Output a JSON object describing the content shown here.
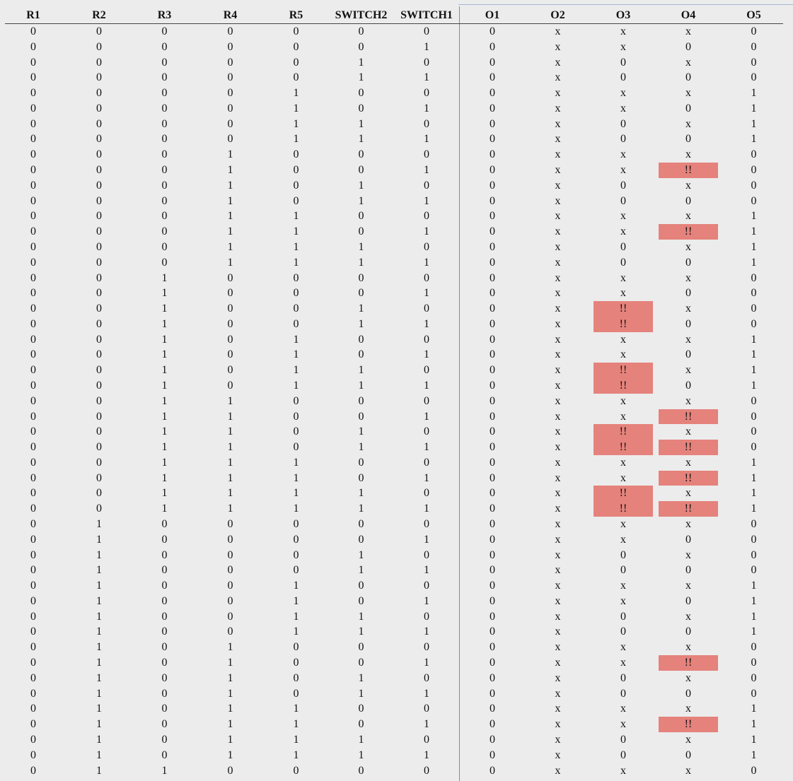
{
  "table": {
    "columns": [
      "R1",
      "R2",
      "R3",
      "R4",
      "R5",
      "SWITCH2",
      "SWITCH1",
      "O1",
      "O2",
      "O3",
      "O4",
      "O5"
    ],
    "rows": [
      [
        "0",
        "0",
        "0",
        "0",
        "0",
        "0",
        "0",
        "0",
        "x",
        "x",
        "x",
        "0"
      ],
      [
        "0",
        "0",
        "0",
        "0",
        "0",
        "0",
        "1",
        "0",
        "x",
        "x",
        "0",
        "0"
      ],
      [
        "0",
        "0",
        "0",
        "0",
        "0",
        "1",
        "0",
        "0",
        "x",
        "0",
        "x",
        "0"
      ],
      [
        "0",
        "0",
        "0",
        "0",
        "0",
        "1",
        "1",
        "0",
        "x",
        "0",
        "0",
        "0"
      ],
      [
        "0",
        "0",
        "0",
        "0",
        "1",
        "0",
        "0",
        "0",
        "x",
        "x",
        "x",
        "1"
      ],
      [
        "0",
        "0",
        "0",
        "0",
        "1",
        "0",
        "1",
        "0",
        "x",
        "x",
        "0",
        "1"
      ],
      [
        "0",
        "0",
        "0",
        "0",
        "1",
        "1",
        "0",
        "0",
        "x",
        "0",
        "x",
        "1"
      ],
      [
        "0",
        "0",
        "0",
        "0",
        "1",
        "1",
        "1",
        "0",
        "x",
        "0",
        "0",
        "1"
      ],
      [
        "0",
        "0",
        "0",
        "1",
        "0",
        "0",
        "0",
        "0",
        "x",
        "x",
        "x",
        "0"
      ],
      [
        "0",
        "0",
        "0",
        "1",
        "0",
        "0",
        "1",
        "0",
        "x",
        "x",
        "!!",
        "0"
      ],
      [
        "0",
        "0",
        "0",
        "1",
        "0",
        "1",
        "0",
        "0",
        "x",
        "0",
        "x",
        "0"
      ],
      [
        "0",
        "0",
        "0",
        "1",
        "0",
        "1",
        "1",
        "0",
        "x",
        "0",
        "0",
        "0"
      ],
      [
        "0",
        "0",
        "0",
        "1",
        "1",
        "0",
        "0",
        "0",
        "x",
        "x",
        "x",
        "1"
      ],
      [
        "0",
        "0",
        "0",
        "1",
        "1",
        "0",
        "1",
        "0",
        "x",
        "x",
        "!!",
        "1"
      ],
      [
        "0",
        "0",
        "0",
        "1",
        "1",
        "1",
        "0",
        "0",
        "x",
        "0",
        "x",
        "1"
      ],
      [
        "0",
        "0",
        "0",
        "1",
        "1",
        "1",
        "1",
        "0",
        "x",
        "0",
        "0",
        "1"
      ],
      [
        "0",
        "0",
        "1",
        "0",
        "0",
        "0",
        "0",
        "0",
        "x",
        "x",
        "x",
        "0"
      ],
      [
        "0",
        "0",
        "1",
        "0",
        "0",
        "0",
        "1",
        "0",
        "x",
        "x",
        "0",
        "0"
      ],
      [
        "0",
        "0",
        "1",
        "0",
        "0",
        "1",
        "0",
        "0",
        "x",
        "!!",
        "x",
        "0"
      ],
      [
        "0",
        "0",
        "1",
        "0",
        "0",
        "1",
        "1",
        "0",
        "x",
        "!!",
        "0",
        "0"
      ],
      [
        "0",
        "0",
        "1",
        "0",
        "1",
        "0",
        "0",
        "0",
        "x",
        "x",
        "x",
        "1"
      ],
      [
        "0",
        "0",
        "1",
        "0",
        "1",
        "0",
        "1",
        "0",
        "x",
        "x",
        "0",
        "1"
      ],
      [
        "0",
        "0",
        "1",
        "0",
        "1",
        "1",
        "0",
        "0",
        "x",
        "!!",
        "x",
        "1"
      ],
      [
        "0",
        "0",
        "1",
        "0",
        "1",
        "1",
        "1",
        "0",
        "x",
        "!!",
        "0",
        "1"
      ],
      [
        "0",
        "0",
        "1",
        "1",
        "0",
        "0",
        "0",
        "0",
        "x",
        "x",
        "x",
        "0"
      ],
      [
        "0",
        "0",
        "1",
        "1",
        "0",
        "0",
        "1",
        "0",
        "x",
        "x",
        "!!",
        "0"
      ],
      [
        "0",
        "0",
        "1",
        "1",
        "0",
        "1",
        "0",
        "0",
        "x",
        "!!",
        "x",
        "0"
      ],
      [
        "0",
        "0",
        "1",
        "1",
        "0",
        "1",
        "1",
        "0",
        "x",
        "!!",
        "!!",
        "0"
      ],
      [
        "0",
        "0",
        "1",
        "1",
        "1",
        "0",
        "0",
        "0",
        "x",
        "x",
        "x",
        "1"
      ],
      [
        "0",
        "0",
        "1",
        "1",
        "1",
        "0",
        "1",
        "0",
        "x",
        "x",
        "!!",
        "1"
      ],
      [
        "0",
        "0",
        "1",
        "1",
        "1",
        "1",
        "0",
        "0",
        "x",
        "!!",
        "x",
        "1"
      ],
      [
        "0",
        "0",
        "1",
        "1",
        "1",
        "1",
        "1",
        "0",
        "x",
        "!!",
        "!!",
        "1"
      ],
      [
        "0",
        "1",
        "0",
        "0",
        "0",
        "0",
        "0",
        "0",
        "x",
        "x",
        "x",
        "0"
      ],
      [
        "0",
        "1",
        "0",
        "0",
        "0",
        "0",
        "1",
        "0",
        "x",
        "x",
        "0",
        "0"
      ],
      [
        "0",
        "1",
        "0",
        "0",
        "0",
        "1",
        "0",
        "0",
        "x",
        "0",
        "x",
        "0"
      ],
      [
        "0",
        "1",
        "0",
        "0",
        "0",
        "1",
        "1",
        "0",
        "x",
        "0",
        "0",
        "0"
      ],
      [
        "0",
        "1",
        "0",
        "0",
        "1",
        "0",
        "0",
        "0",
        "x",
        "x",
        "x",
        "1"
      ],
      [
        "0",
        "1",
        "0",
        "0",
        "1",
        "0",
        "1",
        "0",
        "x",
        "x",
        "0",
        "1"
      ],
      [
        "0",
        "1",
        "0",
        "0",
        "1",
        "1",
        "0",
        "0",
        "x",
        "0",
        "x",
        "1"
      ],
      [
        "0",
        "1",
        "0",
        "0",
        "1",
        "1",
        "1",
        "0",
        "x",
        "0",
        "0",
        "1"
      ],
      [
        "0",
        "1",
        "0",
        "1",
        "0",
        "0",
        "0",
        "0",
        "x",
        "x",
        "x",
        "0"
      ],
      [
        "0",
        "1",
        "0",
        "1",
        "0",
        "0",
        "1",
        "0",
        "x",
        "x",
        "!!",
        "0"
      ],
      [
        "0",
        "1",
        "0",
        "1",
        "0",
        "1",
        "0",
        "0",
        "x",
        "0",
        "x",
        "0"
      ],
      [
        "0",
        "1",
        "0",
        "1",
        "0",
        "1",
        "1",
        "0",
        "x",
        "0",
        "0",
        "0"
      ],
      [
        "0",
        "1",
        "0",
        "1",
        "1",
        "0",
        "0",
        "0",
        "x",
        "x",
        "x",
        "1"
      ],
      [
        "0",
        "1",
        "0",
        "1",
        "1",
        "0",
        "1",
        "0",
        "x",
        "x",
        "!!",
        "1"
      ],
      [
        "0",
        "1",
        "0",
        "1",
        "1",
        "1",
        "0",
        "0",
        "x",
        "0",
        "x",
        "1"
      ],
      [
        "0",
        "1",
        "0",
        "1",
        "1",
        "1",
        "1",
        "0",
        "x",
        "0",
        "0",
        "1"
      ],
      [
        "0",
        "1",
        "1",
        "0",
        "0",
        "0",
        "0",
        "0",
        "x",
        "x",
        "x",
        "0"
      ]
    ],
    "highlight_marker": "!!",
    "highlight_color": "#e5827c"
  }
}
